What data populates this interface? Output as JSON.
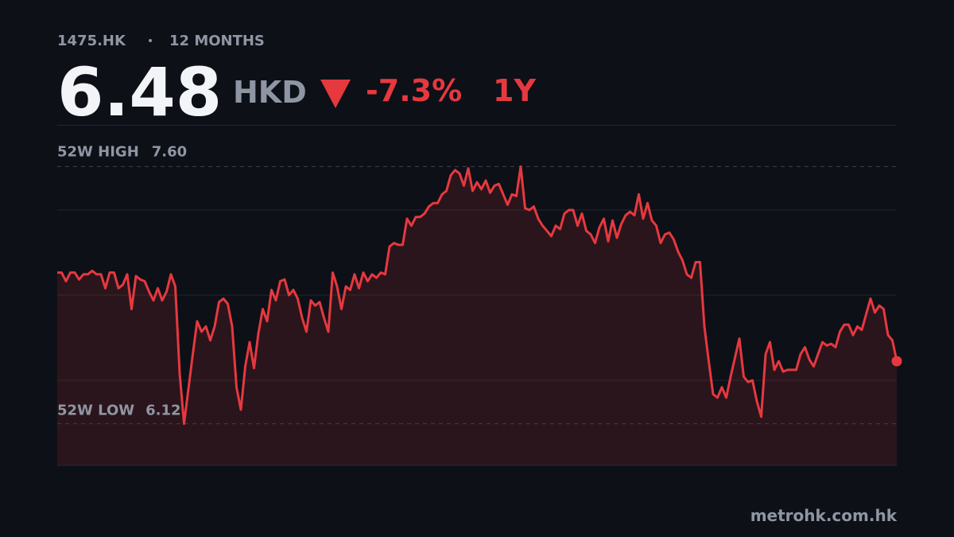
{
  "chart_data": {
    "type": "line",
    "ticker": "1475.HK",
    "range_label": "12 MONTHS",
    "price": 6.48,
    "currency": "HKD",
    "change": {
      "value": -7.3,
      "label": "-7.3%"
    },
    "period": "1Y",
    "high": {
      "name": "52W HIGH",
      "value": 7.6,
      "label": "7.60"
    },
    "low": {
      "name": "52W LOW",
      "value": 6.12,
      "label": "6.12"
    },
    "source": "metrohk.com.hk",
    "color": "#e5393f",
    "ylim": [
      5.88,
      7.84
    ],
    "grid": true,
    "values": [
      6.99,
      6.99,
      6.94,
      6.99,
      6.99,
      6.95,
      6.98,
      6.98,
      7.0,
      6.98,
      6.98,
      6.9,
      6.99,
      6.99,
      6.9,
      6.92,
      6.98,
      6.78,
      6.97,
      6.95,
      6.94,
      6.88,
      6.83,
      6.9,
      6.83,
      6.88,
      6.98,
      6.91,
      6.41,
      6.12,
      6.32,
      6.52,
      6.71,
      6.65,
      6.68,
      6.6,
      6.68,
      6.82,
      6.84,
      6.81,
      6.68,
      6.33,
      6.2,
      6.45,
      6.59,
      6.44,
      6.64,
      6.78,
      6.71,
      6.89,
      6.83,
      6.94,
      6.95,
      6.86,
      6.89,
      6.84,
      6.73,
      6.65,
      6.83,
      6.8,
      6.82,
      6.73,
      6.65,
      6.99,
      6.91,
      6.78,
      6.91,
      6.89,
      6.98,
      6.9,
      6.99,
      6.94,
      6.98,
      6.96,
      6.99,
      6.98,
      7.14,
      7.16,
      7.15,
      7.15,
      7.3,
      7.26,
      7.31,
      7.31,
      7.33,
      7.37,
      7.39,
      7.39,
      7.44,
      7.46,
      7.55,
      7.58,
      7.56,
      7.49,
      7.59,
      7.46,
      7.51,
      7.47,
      7.52,
      7.45,
      7.49,
      7.5,
      7.44,
      7.38,
      7.44,
      7.43,
      7.6,
      7.36,
      7.35,
      7.37,
      7.3,
      7.26,
      7.23,
      7.2,
      7.26,
      7.24,
      7.33,
      7.35,
      7.35,
      7.26,
      7.33,
      7.23,
      7.21,
      7.16,
      7.25,
      7.3,
      7.17,
      7.29,
      7.19,
      7.27,
      7.32,
      7.34,
      7.32,
      7.44,
      7.3,
      7.39,
      7.29,
      7.26,
      7.16,
      7.21,
      7.22,
      7.18,
      7.11,
      7.06,
      6.98,
      6.96,
      7.05,
      7.05,
      6.68,
      6.48,
      6.29,
      6.27,
      6.33,
      6.27,
      6.39,
      6.5,
      6.61,
      6.39,
      6.36,
      6.37,
      6.25,
      6.16,
      6.52,
      6.59,
      6.43,
      6.48,
      6.42,
      6.43,
      6.43,
      6.43,
      6.52,
      6.56,
      6.49,
      6.45,
      6.52,
      6.59,
      6.57,
      6.58,
      6.56,
      6.65,
      6.69,
      6.69,
      6.63,
      6.68,
      6.66,
      6.75,
      6.84,
      6.76,
      6.8,
      6.78,
      6.63,
      6.6,
      6.48
    ]
  }
}
